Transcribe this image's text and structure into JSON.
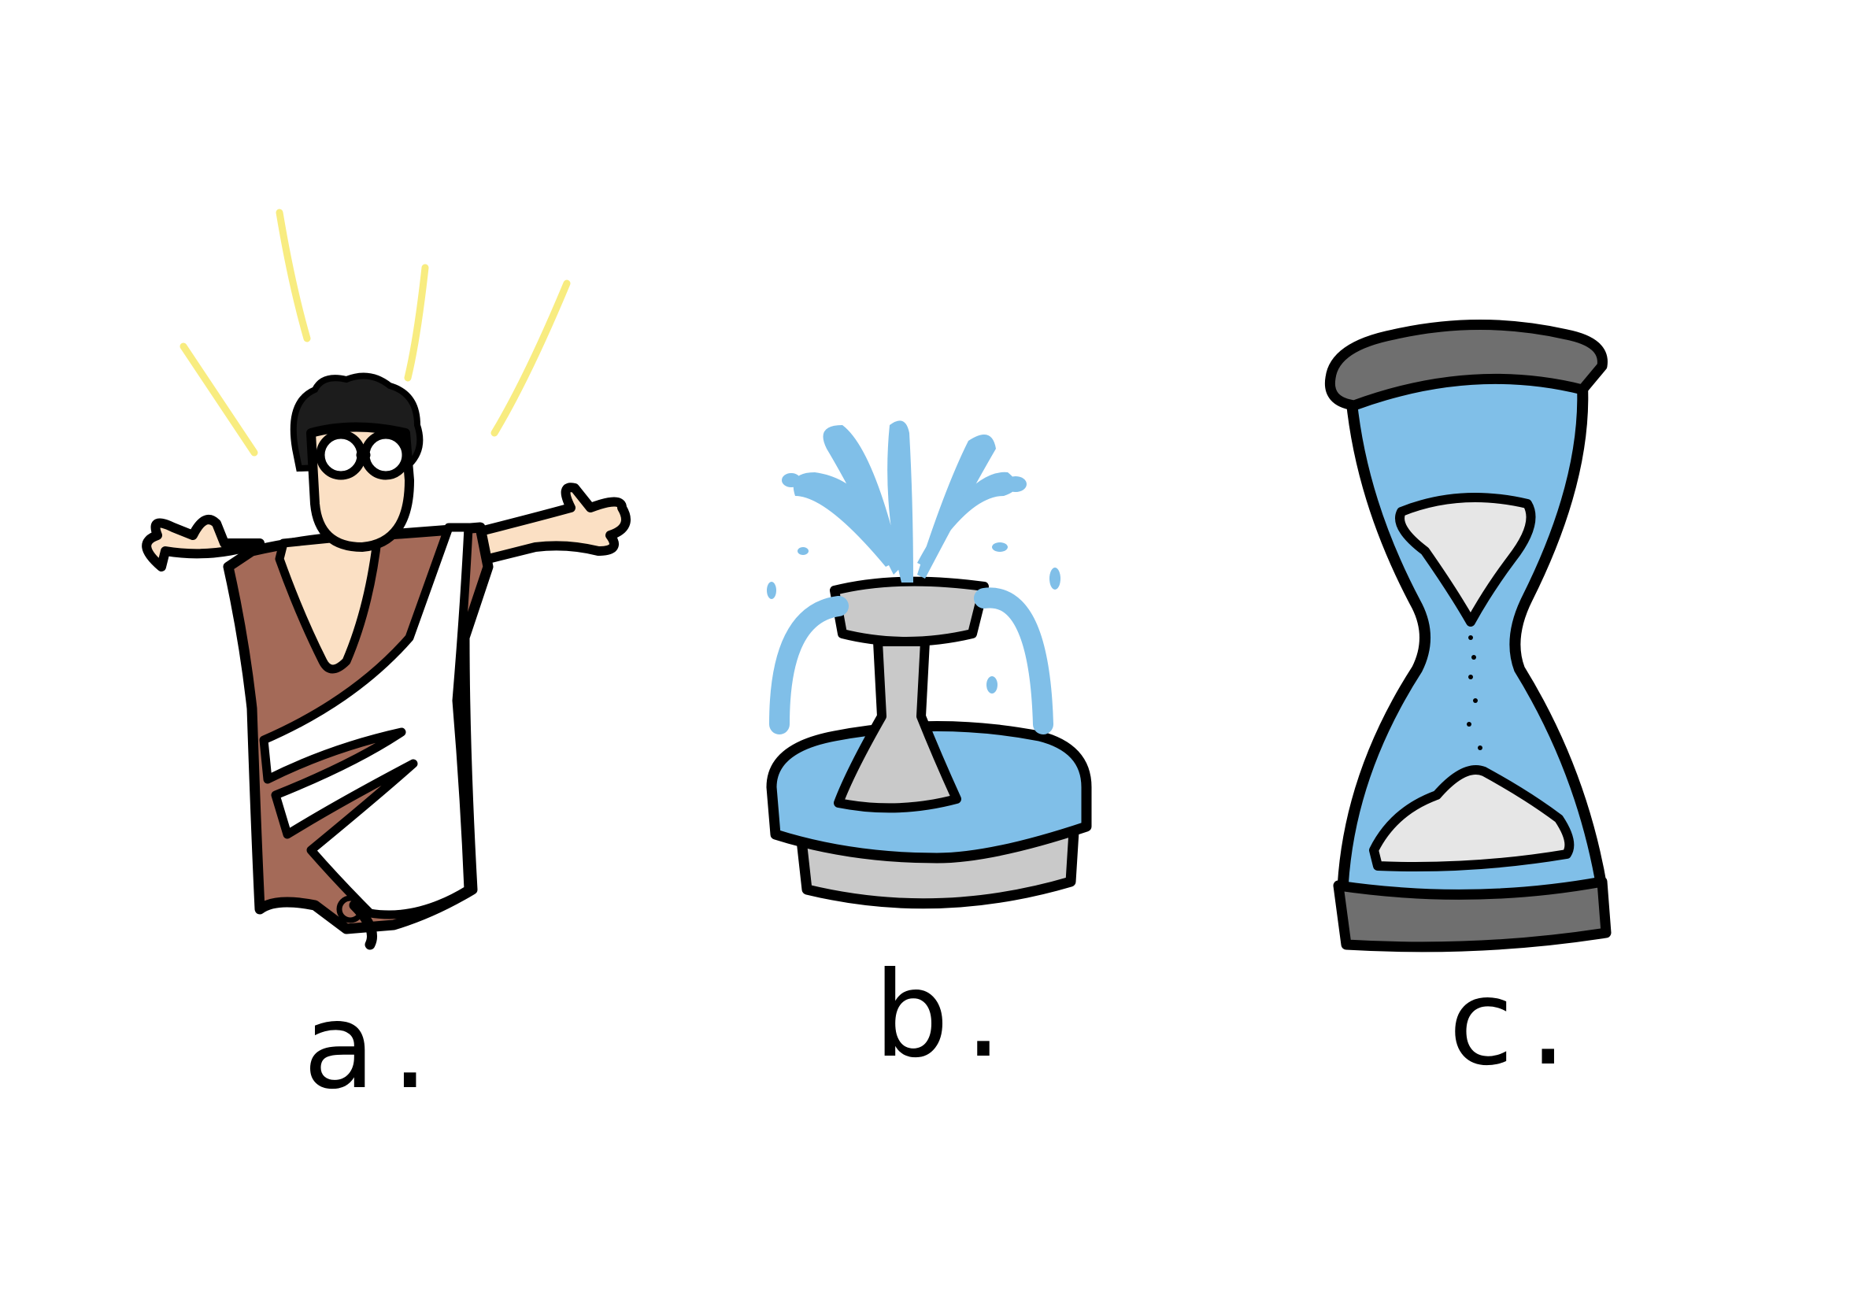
{
  "options": [
    {
      "label": "a.",
      "icon": "philosopher-toga-icon"
    },
    {
      "label": "b.",
      "icon": "fountain-icon"
    },
    {
      "label": "c.",
      "icon": "hourglass-icon"
    }
  ],
  "colors": {
    "background": "#ffffff",
    "outline": "#000000",
    "water_blue": "#80bfe8",
    "stone_grey": "#c9c9c9",
    "cap_grey": "#6f6f6f",
    "toga_brown": "#a46a58",
    "skin": "#fbe0c4",
    "light_rays": "#f8ec80",
    "sand": "#e6e6e6"
  }
}
